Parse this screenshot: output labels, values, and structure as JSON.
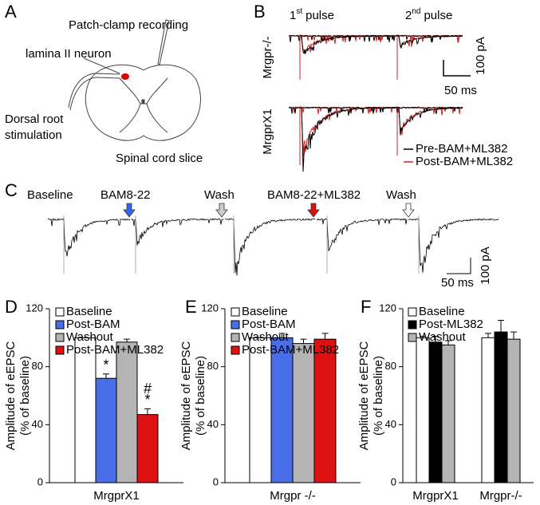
{
  "panel_a": {
    "label": "A",
    "recording": "Patch-clamp recording",
    "neuron": "lamina II neuron",
    "stimulation": [
      "Dorsal root",
      "stimulation"
    ],
    "slice": "Spinal cord slice"
  },
  "panel_b": {
    "label": "B",
    "pulses": [
      {
        "number": "1",
        "suffix": "st",
        "text": "pulse"
      },
      {
        "number": "2",
        "suffix": "nd",
        "text": "pulse"
      }
    ],
    "rows": [
      "Mrgpr-/-",
      "MrgprX1"
    ],
    "scale": {
      "current": "100 pA",
      "time": "50 ms"
    },
    "legend": [
      {
        "name": "Pre-BAM+ML382",
        "color": "#000000"
      },
      {
        "name": "Post-BAM+ML382",
        "color": "#d62020"
      }
    ]
  },
  "panel_c": {
    "label": "C",
    "conditions": [
      "Baseline",
      "BAM8-22",
      "Wash",
      "BAM8-22+ML382",
      "Wash"
    ],
    "scale": {
      "current": "100 pA",
      "time": "50 ms"
    }
  },
  "chart_data": [
    {
      "type": "bar",
      "panel": "D",
      "ylabel": [
        "Amplitude of eEPSC",
        "(% of baseline)"
      ],
      "categories": [
        "MrgprX1"
      ],
      "ylim": [
        0,
        120
      ],
      "yticks": [
        0,
        40,
        80,
        120
      ],
      "series": [
        {
          "name": "Baseline",
          "color": "#ffffff",
          "values": [
            100
          ],
          "errors": [
            0
          ]
        },
        {
          "name": "Post-BAM",
          "color": "#4a6ee8",
          "values": [
            72
          ],
          "errors": [
            3
          ],
          "significance": [
            [
              "*"
            ]
          ]
        },
        {
          "name": "Washout",
          "color": "#b4b4b4",
          "values": [
            97
          ],
          "errors": [
            2
          ]
        },
        {
          "name": "Post-BAM+ML382",
          "color": "#dd1111",
          "values": [
            47
          ],
          "errors": [
            4
          ],
          "significance": [
            [
              "#",
              "*"
            ]
          ]
        }
      ]
    },
    {
      "type": "bar",
      "panel": "E",
      "ylabel": [
        "Amplitude of eEPSC",
        "(% of baseline)"
      ],
      "categories": [
        "Mrgpr -/-"
      ],
      "ylim": [
        0,
        120
      ],
      "yticks": [
        0,
        40,
        80,
        120
      ],
      "series": [
        {
          "name": "Baseline",
          "color": "#ffffff",
          "values": [
            100
          ],
          "errors": [
            0
          ]
        },
        {
          "name": "Post-BAM",
          "color": "#4a6ee8",
          "values": [
            100
          ],
          "errors": [
            3
          ]
        },
        {
          "name": "Washout",
          "color": "#b4b4b4",
          "values": [
            96
          ],
          "errors": [
            3
          ]
        },
        {
          "name": "Post-BAM+ML382",
          "color": "#dd1111",
          "values": [
            99
          ],
          "errors": [
            4
          ]
        }
      ]
    },
    {
      "type": "bar",
      "panel": "F",
      "ylabel": [
        "Amplitude of eEPSC",
        "(% of baseline)"
      ],
      "categories": [
        "MrgprX1",
        "Mrgpr-/-"
      ],
      "ylim": [
        0,
        120
      ],
      "yticks": [
        0,
        40,
        80,
        120
      ],
      "series": [
        {
          "name": "Baseline",
          "color": "#ffffff",
          "values": [
            100,
            100
          ],
          "errors": [
            1,
            3
          ]
        },
        {
          "name": "Post-ML382",
          "color": "#000000",
          "values": [
            97,
            104
          ],
          "errors": [
            4,
            8
          ]
        },
        {
          "name": "Washout",
          "color": "#b4b4b4",
          "values": [
            95,
            99
          ],
          "errors": [
            3,
            5
          ]
        }
      ]
    }
  ]
}
